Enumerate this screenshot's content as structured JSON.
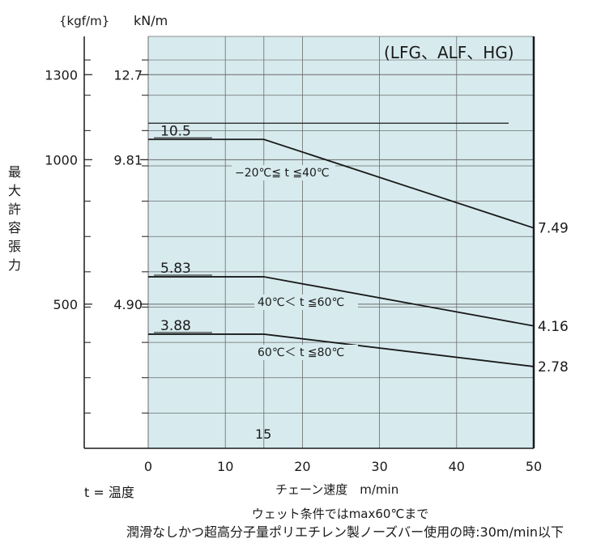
{
  "chart_data": {
    "type": "line",
    "legend_label": "(LFG、ALF、HG)",
    "y_axis": {
      "unit_kgf": "{kgf/m}",
      "unit_kn": "kN/m",
      "label": "最大許容張力",
      "kgf_ticks": [
        {
          "label": "1300",
          "kn": 12.7
        },
        {
          "label": "1000",
          "kn": 9.81
        },
        {
          "label": "500",
          "kn": 4.9
        }
      ],
      "kn_ticks": [
        {
          "label": "12.7",
          "kn": 12.7
        },
        {
          "label": "9.81",
          "kn": 9.81
        },
        {
          "label": "4.90",
          "kn": 4.9
        }
      ],
      "range_kn": [
        0.0,
        14.0
      ]
    },
    "x_axis": {
      "label": "チェーン速度　m/min",
      "ticks": [
        0,
        10,
        20,
        30,
        40,
        50
      ],
      "range": [
        0,
        50
      ]
    },
    "temp_note": "t = 温度",
    "series": [
      {
        "name": "−20℃≦ t ≦40℃",
        "x": [
          0,
          15,
          50
        ],
        "y": [
          10.5,
          10.5,
          7.49
        ],
        "start_label": "10.5",
        "end_label": "7.49"
      },
      {
        "name": "40℃＜ t ≦60℃",
        "x": [
          0,
          15,
          50
        ],
        "y": [
          5.83,
          5.83,
          4.16
        ],
        "start_label": "5.83",
        "end_label": "4.16"
      },
      {
        "name": "60℃＜ t ≦80℃",
        "x": [
          0,
          15,
          50
        ],
        "y": [
          3.88,
          3.88,
          2.78
        ],
        "start_label": "3.88",
        "end_label": "2.78"
      }
    ],
    "annotations": {
      "x15": "15",
      "footnote_line1": "ウェット条件ではmax60℃まで",
      "footnote_line2": "潤滑なしかつ超高分子量ポリエチレン製ノーズバー使用の時:30m/min以下"
    },
    "colors": {
      "plot_bg": "#d7ebee",
      "line": "#1a1a1a",
      "grid": "#6a6a6a"
    }
  }
}
